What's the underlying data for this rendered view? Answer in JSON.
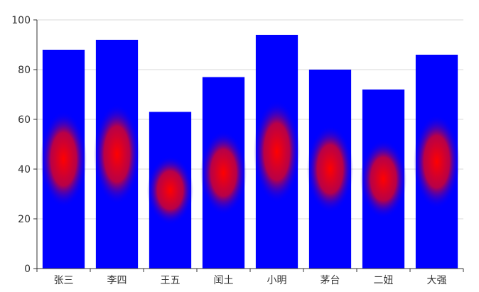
{
  "chart_data": {
    "type": "bar",
    "categories": [
      "张三",
      "李四",
      "王五",
      "闰土",
      "小明",
      "茅台",
      "二妞",
      "大强"
    ],
    "values": [
      88,
      92,
      63,
      77,
      94,
      80,
      72,
      86
    ],
    "ylim": [
      0,
      100
    ],
    "yticks": [
      0,
      20,
      40,
      60,
      80,
      100
    ],
    "grid": true,
    "legend": "none",
    "colors": {
      "bar": "#0000ff",
      "highlight_center": "#ff0000",
      "grid": "#d9d9d9",
      "axis": "#333333"
    }
  }
}
